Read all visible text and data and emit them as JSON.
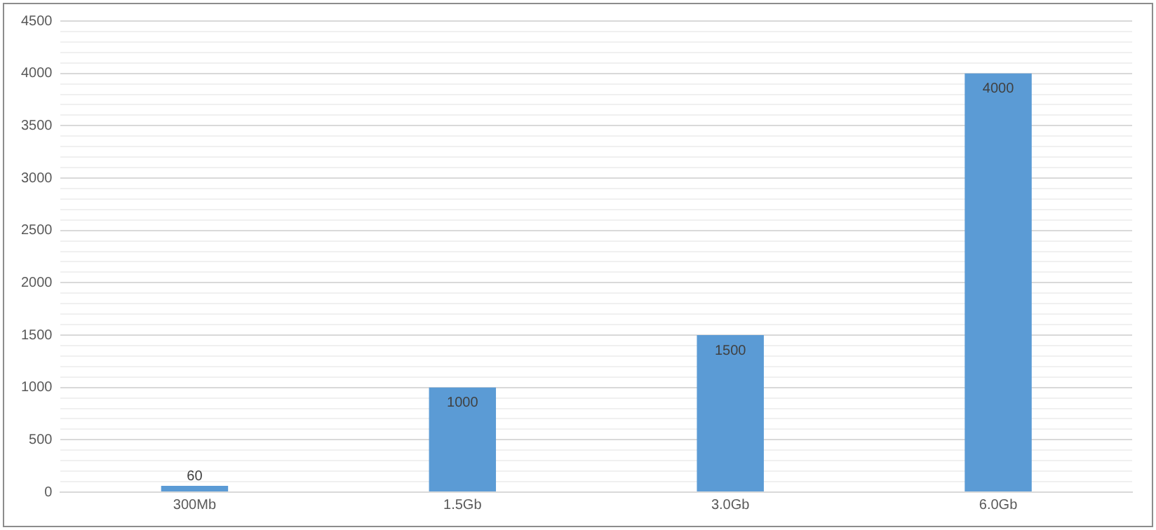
{
  "chart_data": {
    "type": "bar",
    "categories": [
      "300Mb",
      "1.5Gb",
      "3.0Gb",
      "6.0Gb"
    ],
    "values": [
      60,
      1000,
      1500,
      4000
    ],
    "color": "#5b9bd5",
    "ylim": [
      0,
      4500
    ],
    "yticks": [
      0,
      {
        "value": 100,
        "label": null
      },
      {
        "value": 200,
        "label": null
      },
      {
        "value": 300,
        "label": null
      },
      {
        "value": 400,
        "label": null
      },
      500,
      {
        "value": 600,
        "label": null
      },
      {
        "value": 700,
        "label": null
      },
      {
        "value": 800,
        "label": null
      },
      {
        "value": 900,
        "label": null
      },
      1000,
      {
        "value": 1100,
        "label": null
      },
      {
        "value": 1200,
        "label": null
      },
      {
        "value": 1300,
        "label": null
      },
      {
        "value": 1400,
        "label": null
      },
      1500,
      {
        "value": 1600,
        "label": null
      },
      {
        "value": 1700,
        "label": null
      },
      {
        "value": 1800,
        "label": null
      },
      {
        "value": 1900,
        "label": null
      },
      2000,
      {
        "value": 2100,
        "label": null
      },
      {
        "value": 2200,
        "label": null
      },
      {
        "value": 2300,
        "label": null
      },
      {
        "value": 2400,
        "label": null
      },
      2500,
      {
        "value": 2600,
        "label": null
      },
      {
        "value": 2700,
        "label": null
      },
      {
        "value": 2800,
        "label": null
      },
      {
        "value": 2900,
        "label": null
      },
      3000,
      {
        "value": 3100,
        "label": null
      },
      {
        "value": 3200,
        "label": null
      },
      {
        "value": 3300,
        "label": null
      },
      {
        "value": 3400,
        "label": null
      },
      3500,
      {
        "value": 3600,
        "label": null
      },
      {
        "value": 3700,
        "label": null
      },
      {
        "value": 3800,
        "label": null
      },
      {
        "value": 3900,
        "label": null
      },
      4000,
      {
        "value": 4100,
        "label": null
      },
      {
        "value": 4200,
        "label": null
      },
      {
        "value": 4300,
        "label": null
      },
      {
        "value": 4400,
        "label": null
      },
      4500
    ],
    "grid": "y",
    "data_labels": true,
    "legend": false
  }
}
